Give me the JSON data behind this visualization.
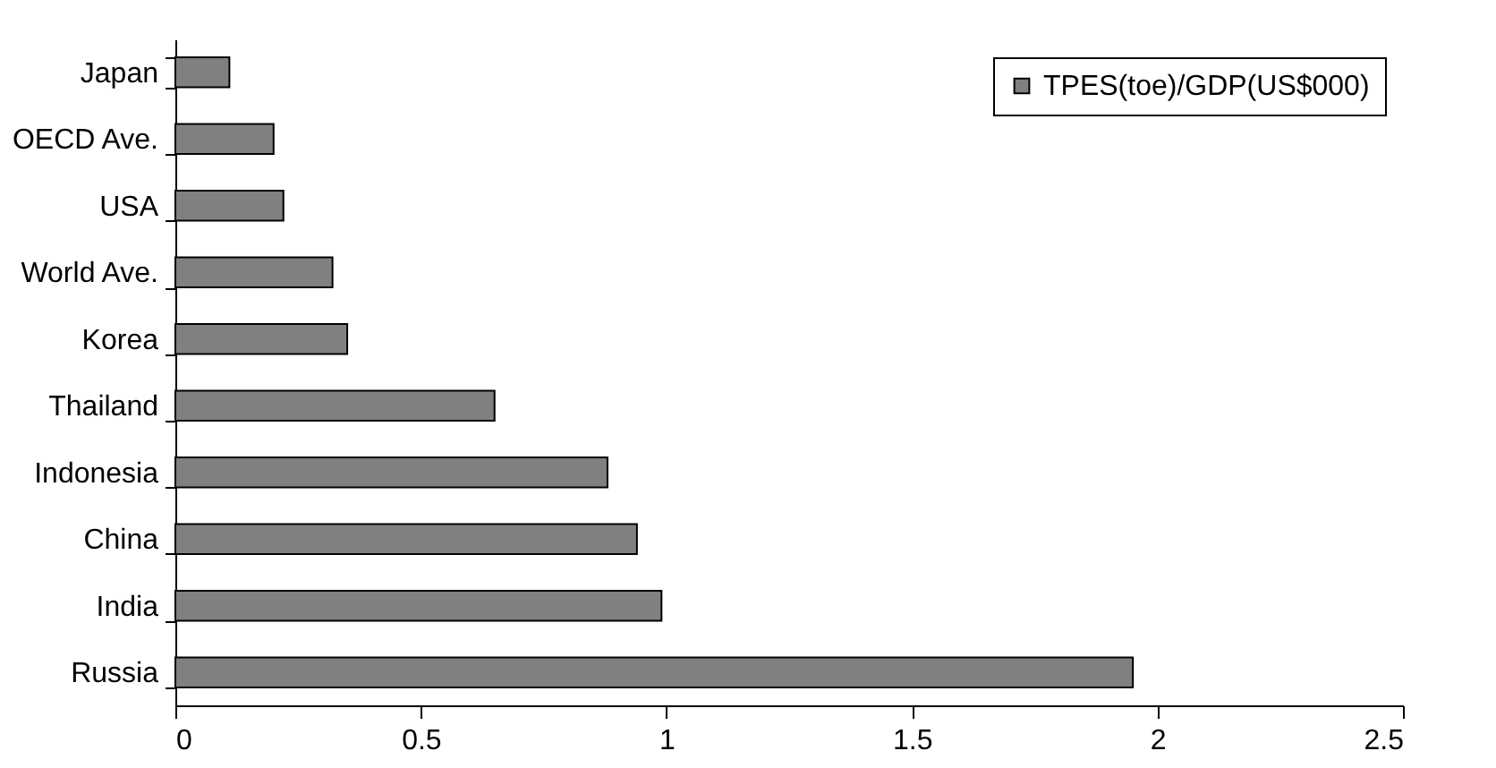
{
  "chart_data": {
    "type": "bar",
    "orientation": "horizontal",
    "categories": [
      "Japan",
      "OECD Ave.",
      "USA",
      "World Ave.",
      "Korea",
      "Thailand",
      "Indonesia",
      "China",
      "India",
      "Russia"
    ],
    "series": [
      {
        "name": "TPES(toe)/GDP(US$000)",
        "color": "#808080",
        "values": [
          0.11,
          0.2,
          0.22,
          0.32,
          0.35,
          0.65,
          0.88,
          0.94,
          0.99,
          1.95
        ]
      }
    ],
    "xlim": [
      0,
      2.5
    ],
    "xticks": [
      0,
      0.5,
      1,
      1.5,
      2,
      2.5
    ],
    "grid": false,
    "legend": "top right"
  }
}
